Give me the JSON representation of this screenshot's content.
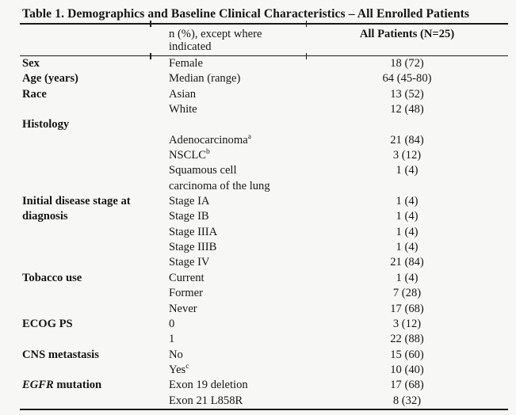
{
  "table": {
    "title": "Table 1. Demographics and Baseline Clinical Characteristics – All Enrolled Patients",
    "columns": {
      "measure_header": "n (%), except where indicated",
      "patients_header": "All Patients (N=25)"
    },
    "rows": [
      {
        "label": "Sex",
        "category": "Female",
        "value": "18 (72)"
      },
      {
        "label": "Age (years)",
        "category": "Median (range)",
        "value": "64 (45-80)"
      },
      {
        "label": "Race",
        "category": "Asian",
        "value": "13 (52)"
      },
      {
        "label": "",
        "category": "White",
        "value": "12 (48)"
      },
      {
        "label": "Histology",
        "category": "",
        "value": ""
      },
      {
        "label": "",
        "category": "Adenocarcinoma",
        "category_sup": "a",
        "value": "21 (84)"
      },
      {
        "label": "",
        "category": "NSCLC",
        "category_sup": "b",
        "value": "3 (12)"
      },
      {
        "label": "",
        "category": "Squamous cell",
        "value": "1 (4)"
      },
      {
        "label": "",
        "category": "carcinoma of the lung",
        "value": ""
      },
      {
        "label": "Initial disease stage at",
        "category": "Stage IA",
        "value": "1 (4)"
      },
      {
        "label": "diagnosis",
        "category": "Stage IB",
        "value": "1 (4)"
      },
      {
        "label": "",
        "category": "Stage IIIA",
        "value": "1 (4)"
      },
      {
        "label": "",
        "category": "Stage IIIB",
        "value": "1 (4)"
      },
      {
        "label": "",
        "category": "Stage IV",
        "value": "21 (84)"
      },
      {
        "label": "Tobacco use",
        "category": "Current",
        "value": "1 (4)"
      },
      {
        "label": "",
        "category": "Former",
        "value": "7 (28)"
      },
      {
        "label": "",
        "category": "Never",
        "value": "17 (68)"
      },
      {
        "label": "ECOG PS",
        "category": "0",
        "value": "3 (12)"
      },
      {
        "label": "",
        "category": "1",
        "value": "22 (88)"
      },
      {
        "label": "CNS metastasis",
        "category": "No",
        "value": "15 (60)"
      },
      {
        "label": "",
        "category": "Yes",
        "category_sup": "c",
        "value": "10 (40)"
      },
      {
        "label_italic": "EGFR",
        "label": " mutation",
        "category": "Exon 19 deletion",
        "value": "17 (68)"
      },
      {
        "label": "",
        "category": "Exon 21 L858R",
        "value": "8 (32)"
      }
    ]
  }
}
